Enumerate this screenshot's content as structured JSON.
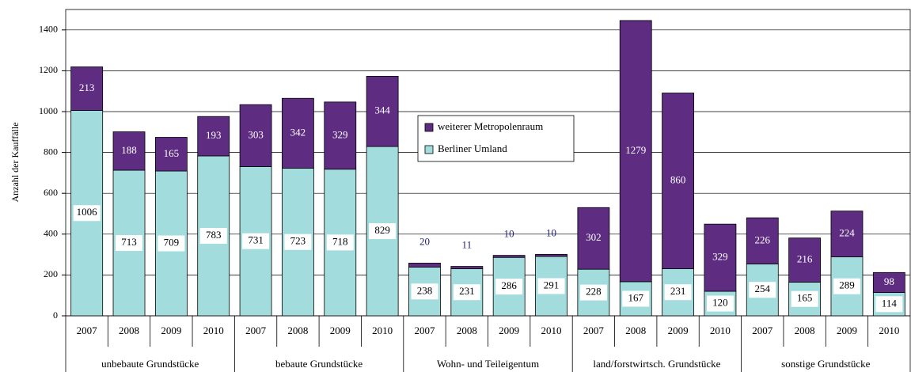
{
  "chart_data": {
    "type": "bar",
    "stacked": true,
    "y_label": "Anzahl der Kauffälle",
    "categories": [
      "2007",
      "2008",
      "2009",
      "2010",
      "2007",
      "2008",
      "2009",
      "2010",
      "2007",
      "2008",
      "2009",
      "2010",
      "2007",
      "2008",
      "2009",
      "2010",
      "2007",
      "2008",
      "2009",
      "2010"
    ],
    "groups": [
      "unbebaute Grundstücke",
      "bebaute Grundstücke",
      "Wohn- und Teileigentum",
      "land/forstwirtsch. Grundstücke",
      "sonstige Grundstücke"
    ],
    "series": [
      {
        "name": "Berliner Umland",
        "color": "#a3dcdc",
        "values": [
          1006,
          713,
          709,
          783,
          731,
          723,
          718,
          829,
          238,
          231,
          286,
          291,
          228,
          167,
          231,
          120,
          254,
          165,
          289,
          114
        ]
      },
      {
        "name": "weiterer Metropolenraum",
        "color": "#5e2d82",
        "values": [
          213,
          188,
          165,
          193,
          303,
          342,
          329,
          344,
          20,
          11,
          10,
          10,
          302,
          1279,
          860,
          329,
          226,
          216,
          224,
          98
        ]
      }
    ],
    "ylim": [
      0,
      1500
    ],
    "yticks": [
      0,
      200,
      400,
      600,
      800,
      1000,
      1200,
      1400
    ],
    "grid": true
  }
}
